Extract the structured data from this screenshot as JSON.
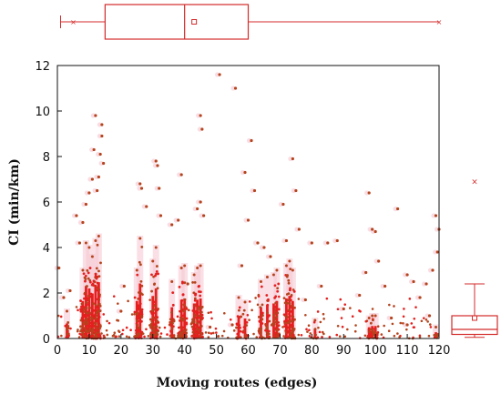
{
  "chart_data": {
    "type": "scatter",
    "xlabel": "Moving routes (edges)",
    "ylabel": "CI (min/km)",
    "xlim": [
      0,
      120
    ],
    "ylim": [
      0,
      12
    ],
    "x_ticks": [
      0,
      10,
      20,
      30,
      40,
      50,
      60,
      70,
      80,
      90,
      100,
      110,
      120
    ],
    "y_ticks": [
      0,
      2,
      4,
      6,
      8,
      10,
      12
    ],
    "colors": {
      "points": "#b5441e",
      "dense": "#e51f1f",
      "box": "#d42b2b",
      "halo": "#f5c6d2"
    },
    "dense_columns": [
      {
        "x": 3,
        "top": 1.2
      },
      {
        "x": 8,
        "top": 3.0
      },
      {
        "x": 9,
        "top": 4.2
      },
      {
        "x": 10,
        "top": 4.0
      },
      {
        "x": 11,
        "top": 3.6
      },
      {
        "x": 12,
        "top": 4.3
      },
      {
        "x": 13,
        "top": 4.5
      },
      {
        "x": 25,
        "top": 3.0
      },
      {
        "x": 26,
        "top": 4.4
      },
      {
        "x": 30,
        "top": 3.4
      },
      {
        "x": 31,
        "top": 4.0
      },
      {
        "x": 36,
        "top": 2.5
      },
      {
        "x": 39,
        "top": 3.1
      },
      {
        "x": 40,
        "top": 3.2
      },
      {
        "x": 43,
        "top": 2.8
      },
      {
        "x": 44,
        "top": 3.1
      },
      {
        "x": 45,
        "top": 3.2
      },
      {
        "x": 57,
        "top": 1.8
      },
      {
        "x": 59,
        "top": 1.6
      },
      {
        "x": 64,
        "top": 2.5
      },
      {
        "x": 66,
        "top": 2.7
      },
      {
        "x": 68,
        "top": 2.8
      },
      {
        "x": 69,
        "top": 3.0
      },
      {
        "x": 72,
        "top": 3.2
      },
      {
        "x": 73,
        "top": 3.4
      },
      {
        "x": 74,
        "top": 3.0
      },
      {
        "x": 81,
        "top": 0.8
      },
      {
        "x": 98,
        "top": 0.9
      },
      {
        "x": 99,
        "top": 1.0
      },
      {
        "x": 100,
        "top": 1.0
      },
      {
        "x": 119,
        "top": 0.5
      }
    ],
    "outliers": [
      [
        0.5,
        3.1
      ],
      [
        2,
        1.8
      ],
      [
        4,
        2.1
      ],
      [
        6,
        5.4
      ],
      [
        7,
        4.2
      ],
      [
        8,
        5.1
      ],
      [
        9,
        5.9
      ],
      [
        10,
        6.4
      ],
      [
        11,
        7.0
      ],
      [
        12,
        9.8
      ],
      [
        12.5,
        6.5
      ],
      [
        13,
        7.1
      ],
      [
        14,
        9.4
      ],
      [
        14.5,
        7.7
      ],
      [
        13.5,
        8.1
      ],
      [
        11.5,
        8.3
      ],
      [
        14,
        8.9
      ],
      [
        20,
        1.2
      ],
      [
        21,
        2.3
      ],
      [
        26,
        6.8
      ],
      [
        26.5,
        6.6
      ],
      [
        28,
        5.8
      ],
      [
        31,
        7.8
      ],
      [
        31.5,
        7.6
      ],
      [
        32,
        6.6
      ],
      [
        32.5,
        5.4
      ],
      [
        36,
        5.0
      ],
      [
        38,
        5.2
      ],
      [
        39,
        7.2
      ],
      [
        41,
        2.4
      ],
      [
        45,
        9.8
      ],
      [
        45.5,
        9.2
      ],
      [
        45,
        6.0
      ],
      [
        44,
        5.7
      ],
      [
        46,
        5.4
      ],
      [
        48,
        0.5
      ],
      [
        51,
        11.6
      ],
      [
        55,
        0.6
      ],
      [
        56,
        11.0
      ],
      [
        58,
        3.2
      ],
      [
        59,
        7.3
      ],
      [
        60,
        5.2
      ],
      [
        61,
        8.7
      ],
      [
        62,
        6.5
      ],
      [
        63,
        4.2
      ],
      [
        65,
        4.0
      ],
      [
        67,
        3.6
      ],
      [
        71,
        5.9
      ],
      [
        72,
        4.3
      ],
      [
        74,
        7.9
      ],
      [
        75,
        6.5
      ],
      [
        76,
        4.8
      ],
      [
        78,
        1.7
      ],
      [
        80,
        4.2
      ],
      [
        83,
        2.3
      ],
      [
        85,
        4.2
      ],
      [
        88,
        4.3
      ],
      [
        90,
        1.3
      ],
      [
        95,
        1.9
      ],
      [
        97,
        2.9
      ],
      [
        98,
        6.4
      ],
      [
        99,
        4.8
      ],
      [
        100,
        4.7
      ],
      [
        101,
        3.4
      ],
      [
        103,
        2.3
      ],
      [
        107,
        5.7
      ],
      [
        110,
        2.8
      ],
      [
        112,
        2.5
      ],
      [
        114,
        1.8
      ],
      [
        116,
        2.4
      ],
      [
        118,
        3.0
      ],
      [
        119,
        5.4
      ],
      [
        120,
        4.8
      ],
      [
        119.5,
        3.8
      ],
      [
        117,
        1.0
      ],
      [
        110,
        0.6
      ],
      [
        105,
        0.9
      ]
    ],
    "top_boxplot": {
      "whisker_low": 1,
      "q1": 15,
      "median": 40,
      "mean": 43,
      "q3": 60,
      "whisker_high": 120
    },
    "right_boxplot": {
      "whisker_low": 0.05,
      "q1": 0.18,
      "median": 0.4,
      "mean": 0.9,
      "q3": 1.0,
      "whisker_high": 2.4,
      "outlier": 6.9
    }
  }
}
